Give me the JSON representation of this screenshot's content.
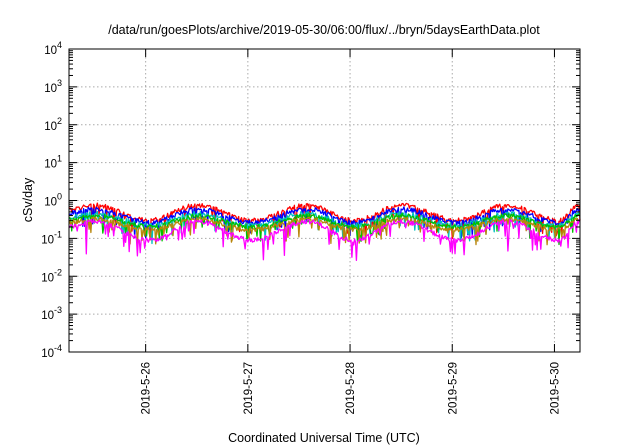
{
  "chart_data": {
    "type": "line",
    "title": "/data/run/goesPlots/archive/2019-05-30/06:00/flux/../bryn/5daysEarthData.plot",
    "xlabel": "Coordinated Universal Time (UTC)",
    "ylabel": "cSv/day",
    "x_axis": {
      "type": "date",
      "range": [
        "2019-05-25T06:00",
        "2019-05-30T06:00"
      ],
      "tick_values": [
        "2019-05-26T00:00",
        "2019-05-27T00:00",
        "2019-05-28T00:00",
        "2019-05-29T00:00",
        "2019-05-30T00:00"
      ],
      "tick_labels": [
        "2019-5-26",
        "2019-5-27",
        "2019-5-28",
        "2019-5-29",
        "2019-5-30"
      ]
    },
    "y_axis": {
      "scale": "log",
      "range": [
        0.0001,
        10000
      ],
      "tick_labels": [
        {
          "base": "10",
          "exp": "4"
        },
        {
          "base": "10",
          "exp": "3"
        },
        {
          "base": "10",
          "exp": "2"
        },
        {
          "base": "10",
          "exp": "1"
        },
        {
          "base": "10",
          "exp": "0"
        },
        {
          "base": "10",
          "exp": "-1"
        },
        {
          "base": "10",
          "exp": "-2"
        },
        {
          "base": "10",
          "exp": "-3"
        },
        {
          "base": "10",
          "exp": "-4"
        }
      ]
    },
    "grid": true,
    "daily_cycle": {
      "peak_times_utc": [
        "2019-05-25T12:00",
        "2019-05-26T12:00",
        "2019-05-27T14:00",
        "2019-05-28T12:00",
        "2019-05-29T13:00",
        "2019-05-30T06:00"
      ],
      "trough_times_utc": [
        "2019-05-26T01:00",
        "2019-05-27T01:00",
        "2019-05-28T01:00",
        "2019-05-29T01:00",
        "2019-05-30T01:00"
      ]
    },
    "series": [
      {
        "color": "#ff0000",
        "peak": 0.75,
        "trough": 0.3
      },
      {
        "color": "#0000ff",
        "peak": 0.6,
        "trough": 0.26
      },
      {
        "color": "#00bfbf",
        "peak": 0.45,
        "trough": 0.22
      },
      {
        "color": "#00c000",
        "peak": 0.4,
        "trough": 0.2
      },
      {
        "color": "#b8860b",
        "peak": 0.32,
        "trough": 0.17
      },
      {
        "color": "#ff00ff",
        "peak": 0.28,
        "trough": 0.09,
        "min_spike": 0.022
      }
    ]
  }
}
